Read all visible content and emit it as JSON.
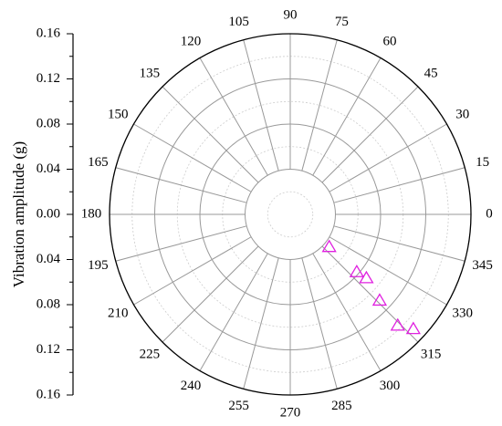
{
  "chart_data": {
    "type": "polar",
    "y_label": "Vibration amplitude (g)",
    "theta": [
      320,
      319,
      320,
      316,
      314,
      317
    ],
    "values": [
      0.045,
      0.078,
      0.088,
      0.11,
      0.137,
      0.149
    ],
    "color": "#e020e0",
    "marker": "triangle",
    "ylim": [
      0,
      0.16
    ],
    "yticks": [
      {
        "value": 0,
        "label": "0.00"
      },
      0.04,
      0.08,
      0.12,
      0.16
    ],
    "minor_yticks": [
      0.02,
      0.06,
      0.1,
      0.14
    ],
    "thetaticks": [
      0,
      15,
      30,
      45,
      60,
      75,
      90,
      105,
      120,
      135,
      150,
      165,
      180,
      195,
      210,
      225,
      240,
      255,
      270,
      285,
      300,
      315,
      330,
      345
    ],
    "grid": true
  }
}
